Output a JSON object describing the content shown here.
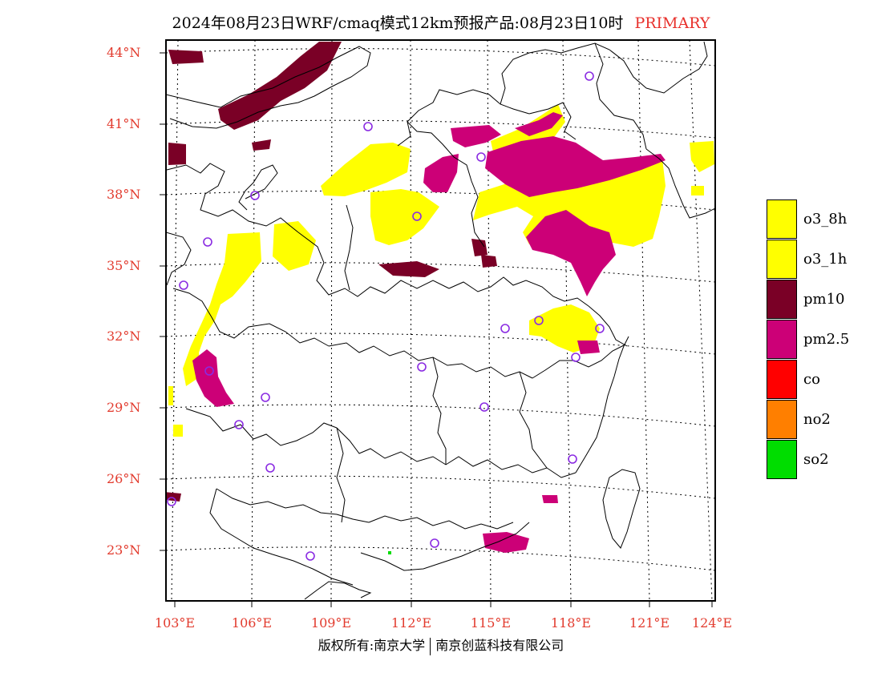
{
  "title": {
    "main": "2024年08月23日WRF/cmaq模式12km预报产品:08月23日10时",
    "tag": "PRIMARY"
  },
  "lat_labels": [
    "44°N",
    "41°N",
    "38°N",
    "35°N",
    "32°N",
    "29°N",
    "26°N",
    "23°N"
  ],
  "lon_labels": [
    "103°E",
    "106°E",
    "109°E",
    "112°E",
    "115°E",
    "118°E",
    "121°E",
    "124°E"
  ],
  "legend": [
    {
      "label": "o3_8h",
      "color": "#ffff00"
    },
    {
      "label": "o3_1h",
      "color": "#ffff00"
    },
    {
      "label": "pm10",
      "color": "#7a0026"
    },
    {
      "label": "pm2.5",
      "color": "#cc0077"
    },
    {
      "label": "co",
      "color": "#ff0000"
    },
    {
      "label": "no2",
      "color": "#ff7f00"
    },
    {
      "label": "so2",
      "color": "#00dd00"
    }
  ],
  "copyright": {
    "left": "版权所有:南京大学",
    "right": "南京创蓝科技有限公司"
  },
  "colors": {
    "o3": "#ffff00",
    "pm10": "#7a0026",
    "pm25": "#cc0077",
    "station": "#8a2be2",
    "label": "#e23b2e"
  }
}
